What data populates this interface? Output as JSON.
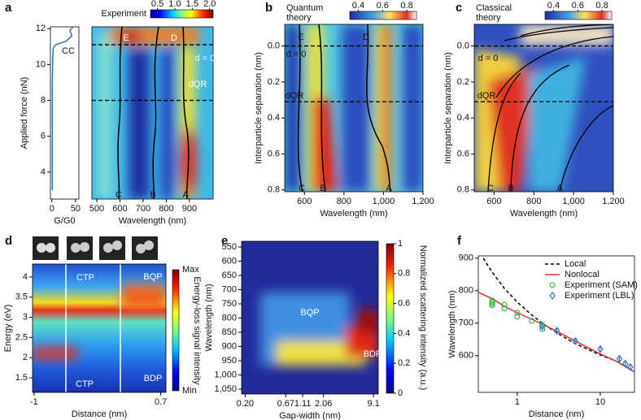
{
  "chart_data": [
    {
      "panel": "a",
      "type": "line",
      "ylabel": "Applied force (nN)",
      "xlabel": "G/G0",
      "xlim": [
        -3,
        57
      ],
      "xticks": [
        0,
        50
      ],
      "ylim": [
        2.5,
        12.1
      ],
      "yticks": [
        4,
        6,
        8,
        10,
        12
      ],
      "series": [
        {
          "color": "#2f6fb0",
          "x": [
            1,
            1,
            1,
            1,
            2,
            3,
            8,
            30,
            42,
            38,
            45
          ],
          "values": [
            3,
            5,
            7,
            9,
            10.5,
            10.9,
            11.1,
            11.3,
            11.6,
            11.9,
            12.1
          ]
        }
      ],
      "annotations": [
        "CC"
      ]
    },
    {
      "type": "heatmap",
      "xlabel": "Wavelength (nm)",
      "xlim": [
        479,
        1002
      ],
      "xticks": [
        500,
        600,
        700,
        800,
        900
      ],
      "ylim": [
        2.5,
        12.1
      ],
      "hlines": [
        11.1,
        8
      ],
      "annotations": [
        "E",
        "D",
        "d = 0",
        "dQR",
        "C",
        "B",
        "A"
      ],
      "colorbar": {
        "label": "Experiment",
        "lim": [
          0.3,
          2.1
        ],
        "ticks": [
          0.5,
          {
            "value": 1,
            "label": "1.0"
          },
          1.5,
          {
            "value": 2,
            "label": "2.0"
          }
        ]
      }
    },
    {
      "panel": "b",
      "type": "heatmap",
      "ylabel": "Interparticle separation (nm)",
      "xlabel": "Wavelength (nm)",
      "xlim": [
        500,
        1200
      ],
      "xticks": [
        600,
        800,
        {
          "value": 1000,
          "label": "1,000"
        },
        {
          "value": 1200,
          "label": "1,200"
        }
      ],
      "ylim": [
        0.81,
        -0.12
      ],
      "yticks": [
        {
          "value": 0,
          "label": "0.0"
        },
        0.2,
        0.4,
        0.6,
        0.8
      ],
      "hlines": [
        0,
        0.31
      ],
      "annotations": [
        "E",
        "D",
        "d = 0",
        "dQR",
        "C",
        "B",
        "A"
      ],
      "colorbar": {
        "label": [
          "Quantum",
          "theory"
        ],
        "lim": [
          0.33,
          0.88
        ],
        "ticks": [
          0.4,
          0.6,
          0.8
        ]
      }
    },
    {
      "panel": "c",
      "type": "heatmap",
      "ylabel": "Interparticle separation (nm)",
      "xlabel": "Wavelength (nm)",
      "xlim": [
        500,
        1200
      ],
      "xticks": [
        600,
        800,
        {
          "value": 1000,
          "label": "1,000"
        },
        {
          "value": 1200,
          "label": "1,200"
        }
      ],
      "ylim": [
        0.81,
        -0.12
      ],
      "yticks": [
        {
          "value": 0,
          "label": "0.0"
        },
        0.2,
        0.4,
        0.6,
        0.8
      ],
      "hlines": [
        0,
        0.31
      ],
      "annotations": [
        "d = 0",
        "dQR",
        "C",
        "B",
        "A"
      ],
      "colorbar": {
        "label": [
          "Classical",
          "theory"
        ],
        "lim": [
          0.33,
          0.88
        ],
        "ticks": [
          0.4,
          0.6,
          0.8
        ]
      }
    },
    {
      "panel": "d",
      "type": "heatmap",
      "ylabel": "Energy (eV)",
      "xlabel": "Distance (nm)",
      "xlim": [
        -1.02,
        0.77
      ],
      "xticks": [
        -1,
        0.7
      ],
      "ylim": [
        1.14,
        4.32
      ],
      "yticks": [
        1.5,
        2,
        2.5,
        3,
        3.5,
        4
      ],
      "annotations": [
        "CTP",
        "BQP",
        "BDP",
        "CTP"
      ],
      "colorbar": {
        "label": "Energy-loss signal intensity",
        "labels": [
          "Max",
          "Min"
        ]
      }
    },
    {
      "panel": "e",
      "type": "heatmap",
      "ylabel": "Wavelength (nm)",
      "xlabel": "Gap-width (nm)",
      "xscale": "log",
      "xlim": [
        0.18,
        10.5
      ],
      "xticks": [
        {
          "value": 0.2,
          "label": "0.20"
        },
        0.67,
        1.11,
        2.06,
        9.1
      ],
      "ylim": [
        1067,
        530
      ],
      "yticks": [
        550,
        600,
        650,
        700,
        750,
        800,
        850,
        900,
        950,
        {
          "value": 1000,
          "label": "1,000"
        },
        {
          "value": 1050,
          "label": "1,050"
        }
      ],
      "annotations": [
        "BQP",
        "BDP"
      ],
      "colorbar": {
        "label": "Normalized scattering intensity (a.u.)",
        "lim": [
          0,
          1
        ],
        "ticks": [
          0,
          0.2,
          0.4,
          0.6,
          0.8,
          1
        ]
      }
    },
    {
      "panel": "f",
      "type": "line",
      "ylabel": "Wavelength (nm)",
      "xlabel": "Distance (nm)",
      "xscale": "log",
      "xlim": [
        0.34,
        25.8
      ],
      "xticks": [
        1,
        10
      ],
      "ylim": [
        487,
        907
      ],
      "yticks": [
        600,
        700,
        800,
        900
      ],
      "legend": "upper right",
      "series": [
        {
          "name": "Local",
          "color": "#000000",
          "dash": "dashed",
          "x": [
            0.39,
            0.5,
            0.7,
            1,
            1.5,
            2,
            3,
            5,
            10,
            15,
            25.8
          ],
          "values": [
            900,
            857,
            807,
            765,
            725,
            700,
            670,
            637,
            602,
            585,
            550
          ]
        },
        {
          "name": "Nonlocal",
          "color": "#e8312a",
          "x": [
            0.34,
            0.5,
            0.7,
            1,
            1.5,
            2,
            3,
            5,
            10,
            15,
            25.8
          ],
          "values": [
            795,
            775,
            752,
            732,
            712,
            697,
            675,
            645,
            605,
            585,
            550
          ]
        },
        {
          "name": "Experiment (SAM)",
          "color": "#3cb44b",
          "marker": "circle",
          "x": [
            0.5,
            0.5,
            0.5,
            0.5,
            0.7,
            0.7,
            1,
            1,
            1.5,
            2,
            2
          ],
          "values": [
            770,
            765,
            760,
            755,
            757,
            745,
            732,
            720,
            707,
            695,
            682
          ]
        },
        {
          "name": "Experiment (LBL)",
          "color": "#2f6fd0",
          "marker": "diamond",
          "x": [
            2,
            3,
            5,
            10,
            17,
            20,
            23
          ],
          "values": [
            690,
            677,
            645,
            620,
            590,
            575,
            565
          ],
          "errors": [
            8,
            8,
            10,
            10,
            12,
            10,
            10
          ]
        }
      ]
    }
  ]
}
